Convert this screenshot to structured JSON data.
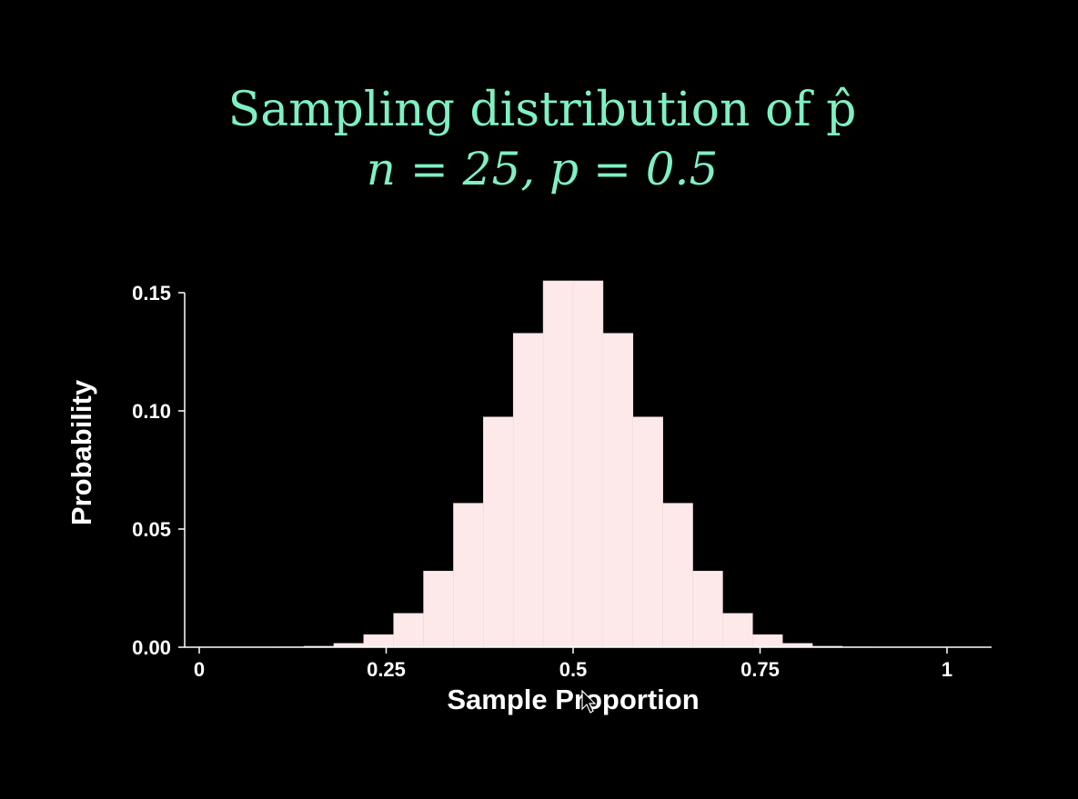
{
  "chart_data": {
    "type": "bar",
    "title_line1": "Sampling distribution of p̂",
    "title_line2": "n = 25, p = 0.5",
    "xlabel": "Sample Proportion",
    "ylabel": "Probability",
    "xlim": [
      0,
      1.02
    ],
    "ylim": [
      0,
      0.15
    ],
    "xticks": [
      {
        "value": 0,
        "label": "0"
      },
      {
        "value": 0.25,
        "label": "0.25"
      },
      {
        "value": 0.5,
        "label": "0.5"
      },
      {
        "value": 0.75,
        "label": "0.75"
      },
      {
        "value": 1,
        "label": "1"
      }
    ],
    "yticks": [
      {
        "value": 0,
        "label": "0.00"
      },
      {
        "value": 0.05,
        "label": "0.05"
      },
      {
        "value": 0.1,
        "label": "0.10"
      },
      {
        "value": 0.15,
        "label": "0.15"
      }
    ],
    "bin_width": 0.04,
    "x": [
      0,
      0.04,
      0.08,
      0.12,
      0.16,
      0.2,
      0.24,
      0.28,
      0.32,
      0.36,
      0.4,
      0.44,
      0.48,
      0.52,
      0.56,
      0.6,
      0.64,
      0.68,
      0.72,
      0.76,
      0.8,
      0.84,
      0.88,
      0.92,
      0.96,
      1.0
    ],
    "values": [
      0.0,
      0.0,
      0.0,
      0.0001,
      0.0004,
      0.0016,
      0.0053,
      0.0143,
      0.0322,
      0.0609,
      0.0974,
      0.1328,
      0.155,
      0.155,
      0.1328,
      0.0974,
      0.0609,
      0.0322,
      0.0143,
      0.0053,
      0.0016,
      0.0004,
      0.0001,
      0.0,
      0.0,
      0.0
    ],
    "colors": {
      "bars": "#fde9ea",
      "title": "#7ff0c2",
      "axes": "#ffffff",
      "background": "#000000"
    }
  }
}
